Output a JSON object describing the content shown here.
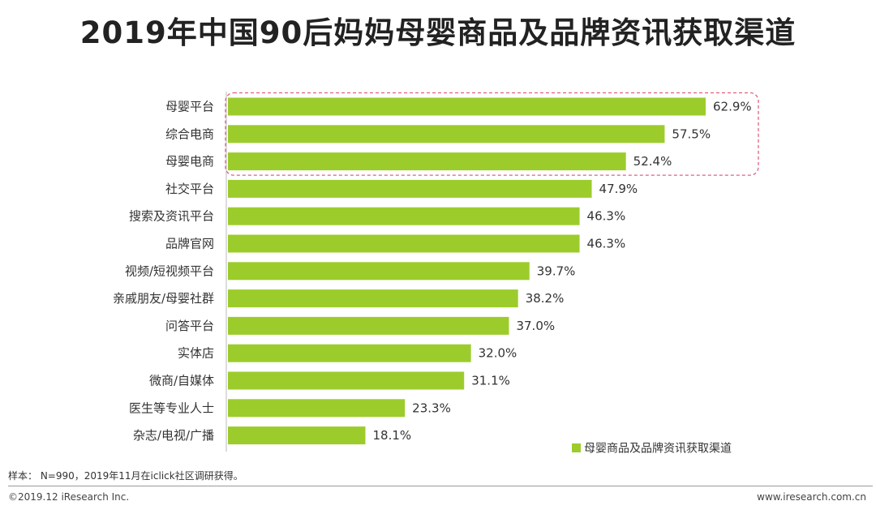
{
  "chart_data": {
    "type": "bar",
    "orientation": "horizontal",
    "title": "2019年中国90后妈妈母婴商品及品牌资讯获取渠道",
    "categories": [
      "母婴平台",
      "综合电商",
      "母婴电商",
      "社交平台",
      "搜索及资讯平台",
      "品牌官网",
      "视频/短视频平台",
      "亲戚朋友/母婴社群",
      "问答平台",
      "实体店",
      "微商/自媒体",
      "医生等专业人士",
      "杂志/电视/广播"
    ],
    "values": [
      62.9,
      57.5,
      52.4,
      47.9,
      46.3,
      46.3,
      39.7,
      38.2,
      37.0,
      32.0,
      31.1,
      23.3,
      18.1
    ],
    "value_labels": [
      "62.9%",
      "57.5%",
      "52.4%",
      "47.9%",
      "46.3%",
      "46.3%",
      "39.7%",
      "38.2%",
      "37.0%",
      "32.0%",
      "31.1%",
      "23.3%",
      "18.1%"
    ],
    "series": [
      {
        "name": "母婴商品及品牌资讯获取渠道"
      }
    ],
    "highlighted_categories": [
      "母婴平台",
      "综合电商",
      "母婴电商"
    ],
    "xlim": [
      0,
      65
    ],
    "legend_position": "bottom-right",
    "bar_color": "#9ccc2c",
    "highlight_color": "#e06080"
  },
  "source_note": "样本： N=990，2019年11月在iclick社区调研获得。",
  "copyright": "©2019.12 iResearch Inc.",
  "website": "www.iresearch.com.cn"
}
